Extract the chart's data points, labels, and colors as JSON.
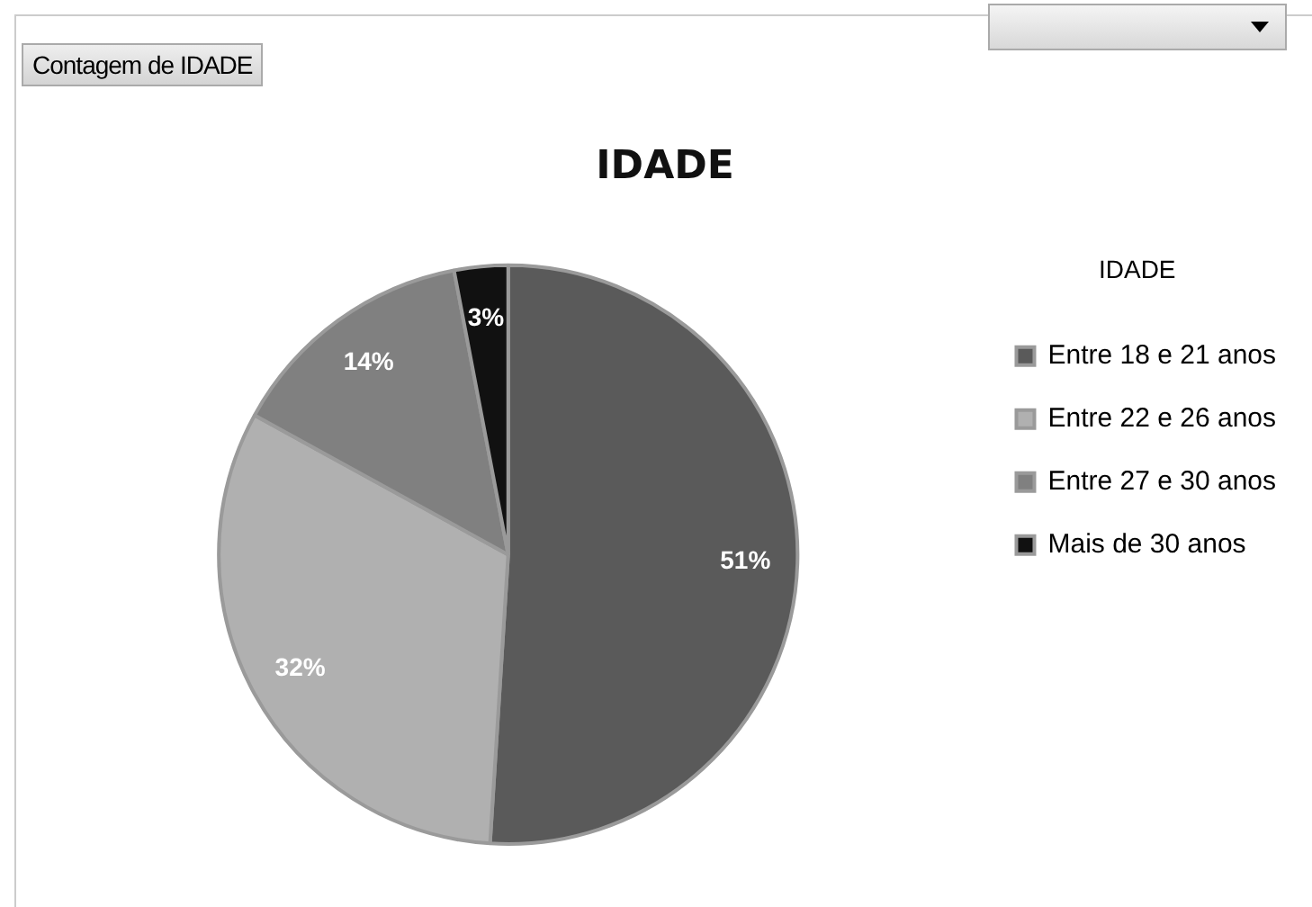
{
  "chart_data": {
    "type": "pie",
    "title": "IDADE",
    "legend_title": "IDADE",
    "legend": "right",
    "categories": [
      "Entre 18 e 21 anos",
      "Entre 22 e 26 anos",
      "Entre 27 e 30 anos",
      "Mais de 30 anos"
    ],
    "values": [
      51,
      32,
      14,
      3
    ],
    "value_labels": [
      "51%",
      "32%",
      "14%",
      "3%"
    ],
    "colors": [
      "#5a5a5a",
      "#b0b0b0",
      "#808080",
      "#111111"
    ],
    "annotations": [
      "Contagem de IDADE"
    ]
  }
}
